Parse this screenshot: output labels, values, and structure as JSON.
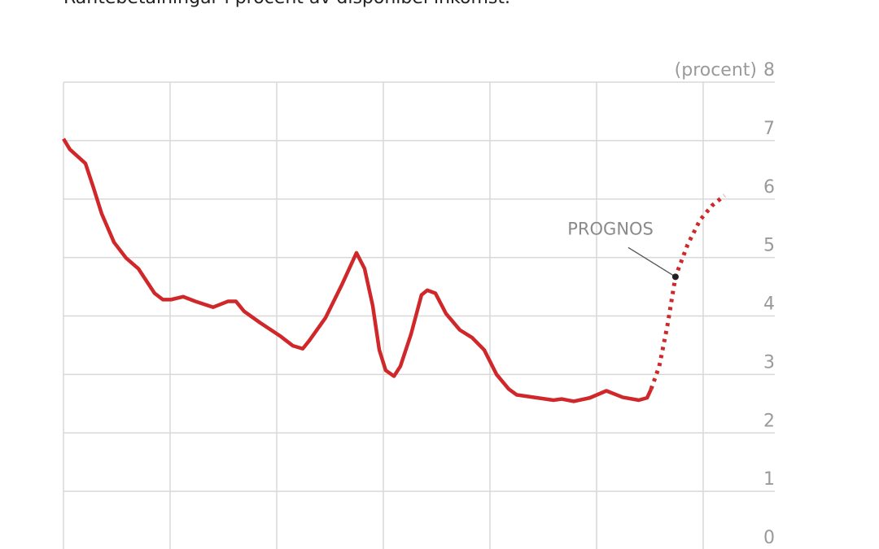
{
  "chart_data": {
    "type": "line",
    "subtitle": "Räntebetalningar i procent av disponibel inkomst.",
    "y_label": "(procent)",
    "xlim": [
      0,
      33.36
    ],
    "xticks": [
      0,
      5,
      10,
      15,
      20,
      25,
      30
    ],
    "ylim": [
      0,
      8
    ],
    "yticks": [
      0,
      1,
      2,
      3,
      4,
      5,
      6,
      7,
      8
    ],
    "grid": true,
    "series": [
      {
        "color": "#d0282a",
        "dashed": false,
        "x": [
          0,
          0.3,
          1.03,
          1.41,
          1.79,
          2.37,
          2.94,
          3.51,
          3.89,
          4.27,
          4.66,
          5.04,
          5.61,
          6.18,
          7.02,
          7.71,
          8.09,
          8.47,
          9.24,
          10.19,
          10.76,
          11.22,
          11.53,
          12.29,
          13.05,
          13.74,
          14.12,
          14.5,
          14.81,
          15.11,
          15.5,
          15.8,
          16.3,
          16.79,
          17.06,
          17.44,
          17.94,
          18.59,
          19.16,
          19.73,
          20.31,
          20.88,
          21.26,
          22.02,
          22.98,
          23.36,
          23.93,
          24.69,
          25.46,
          26.22,
          26.98,
          27.37,
          27.56
        ],
        "values": [
          7.03,
          6.85,
          6.61,
          6.19,
          5.75,
          5.26,
          4.99,
          4.81,
          4.6,
          4.39,
          4.28,
          4.28,
          4.33,
          4.25,
          4.15,
          4.25,
          4.25,
          4.08,
          3.88,
          3.65,
          3.49,
          3.44,
          3.58,
          3.97,
          4.53,
          5.08,
          4.81,
          4.18,
          3.42,
          3.07,
          2.97,
          3.14,
          3.69,
          4.36,
          4.44,
          4.39,
          4.04,
          3.76,
          3.63,
          3.42,
          3.0,
          2.75,
          2.65,
          2.61,
          2.56,
          2.58,
          2.54,
          2.6,
          2.72,
          2.61,
          2.56,
          2.6,
          2.75
        ]
      },
      {
        "color": "#d0282a",
        "dashed": true,
        "x": [
          27.56,
          27.94,
          28.32,
          28.7,
          29.27,
          29.85,
          30.42,
          31.0
        ],
        "values": [
          2.75,
          3.14,
          3.83,
          4.67,
          5.22,
          5.64,
          5.89,
          6.06
        ]
      }
    ],
    "annotation": {
      "text": "PROGNOS",
      "x": 28.7,
      "y": 4.67
    }
  }
}
